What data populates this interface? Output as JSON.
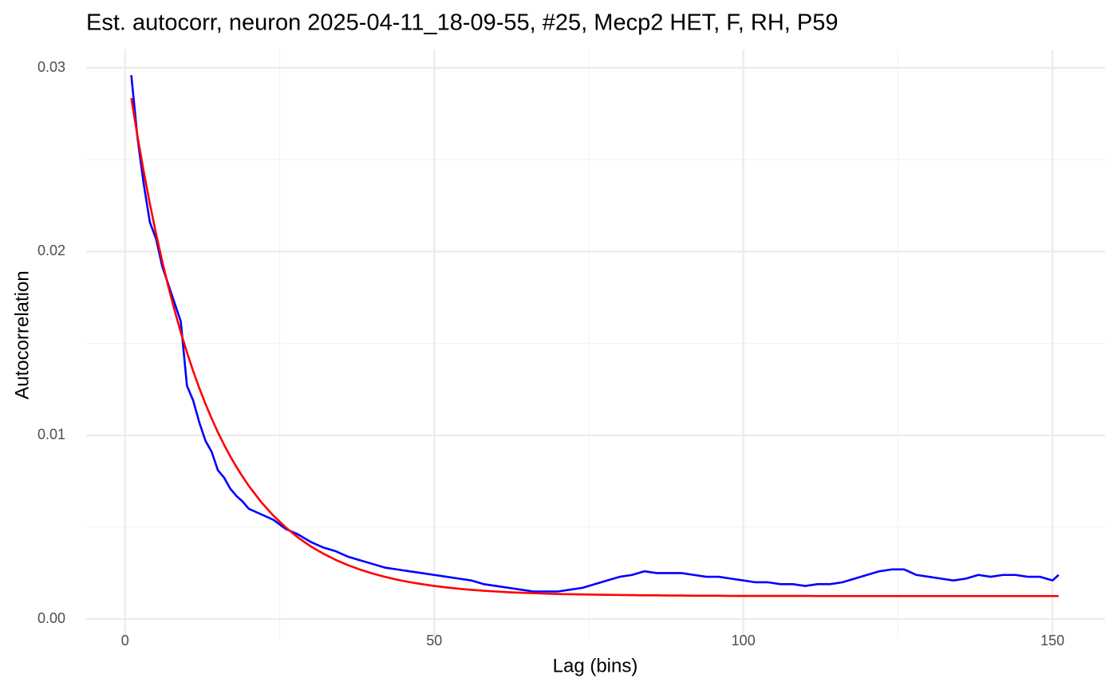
{
  "chart_data": {
    "type": "line",
    "title": "Est. autocorr, neuron 2025-04-11_18-09-55, #25, Mecp2 HET, F, RH, P59",
    "x_label": "Lag (bins)",
    "y_label": "Autocorrelation",
    "x": [
      1,
      2,
      3,
      4,
      5,
      6,
      7,
      8,
      9,
      10,
      11,
      12,
      13,
      14,
      15,
      16,
      17,
      18,
      19,
      20,
      22,
      24,
      26,
      28,
      30,
      32,
      34,
      36,
      38,
      40,
      42,
      44,
      46,
      48,
      50,
      52,
      54,
      56,
      58,
      60,
      62,
      64,
      66,
      68,
      70,
      72,
      74,
      76,
      78,
      80,
      82,
      84,
      86,
      88,
      90,
      92,
      94,
      96,
      98,
      100,
      102,
      104,
      106,
      108,
      110,
      112,
      114,
      116,
      118,
      120,
      122,
      124,
      126,
      128,
      130,
      132,
      134,
      136,
      138,
      140,
      142,
      144,
      146,
      148,
      150,
      151
    ],
    "series": [
      {
        "color": "#0000ff",
        "values": [
          0.0296,
          0.0262,
          0.0237,
          0.0216,
          0.0207,
          0.0192,
          0.0182,
          0.0172,
          0.0162,
          0.0127,
          0.0119,
          0.0107,
          0.0097,
          0.0091,
          0.0081,
          0.0077,
          0.0071,
          0.0067,
          0.0064,
          0.006,
          0.0057,
          0.0054,
          0.0049,
          0.0046,
          0.0042,
          0.0039,
          0.0037,
          0.0034,
          0.0032,
          0.003,
          0.0028,
          0.0027,
          0.0026,
          0.0025,
          0.0024,
          0.0023,
          0.0022,
          0.0021,
          0.0019,
          0.0018,
          0.0017,
          0.0016,
          0.0015,
          0.0015,
          0.0015,
          0.0016,
          0.0017,
          0.0019,
          0.0021,
          0.0023,
          0.0024,
          0.0026,
          0.0025,
          0.0025,
          0.0025,
          0.0024,
          0.0023,
          0.0023,
          0.0022,
          0.0021,
          0.002,
          0.002,
          0.0019,
          0.0019,
          0.0018,
          0.0019,
          0.0019,
          0.002,
          0.0022,
          0.0024,
          0.0026,
          0.0027,
          0.0027,
          0.0024,
          0.0023,
          0.0022,
          0.0021,
          0.0022,
          0.0024,
          0.0023,
          0.0024,
          0.0024,
          0.0023,
          0.0023,
          0.0021,
          0.0024
        ]
      },
      {
        "color": "#ff0000",
        "values": [
          0.02835,
          0.02628,
          0.02437,
          0.02261,
          0.02098,
          0.01947,
          0.01808,
          0.0168,
          0.01561,
          0.01452,
          0.0135,
          0.01257,
          0.01171,
          0.01091,
          0.01017,
          0.00949,
          0.00886,
          0.00828,
          0.00775,
          0.00725,
          0.00637,
          0.00562,
          0.00498,
          0.00443,
          0.00396,
          0.00357,
          0.00323,
          0.00294,
          0.00269,
          0.00248,
          0.0023,
          0.00214,
          0.00201,
          0.0019,
          0.0018,
          0.00172,
          0.00165,
          0.00159,
          0.00154,
          0.0015,
          0.00146,
          0.00143,
          0.00141,
          0.00138,
          0.00136,
          0.00135,
          0.00134,
          0.00133,
          0.00132,
          0.00131,
          0.0013,
          0.00129,
          0.00129,
          0.00128,
          0.00128,
          0.00127,
          0.00127,
          0.00127,
          0.00126,
          0.00126,
          0.00126,
          0.00126,
          0.00126,
          0.00126,
          0.00126,
          0.00125,
          0.00125,
          0.00125,
          0.00125,
          0.00125,
          0.00125,
          0.00125,
          0.00125,
          0.00125,
          0.00125,
          0.00125,
          0.00125,
          0.00125,
          0.00125,
          0.00125,
          0.00125,
          0.00125,
          0.00125,
          0.00125,
          0.00125,
          0.00125
        ]
      }
    ],
    "xlim": [
      -6.3,
      158.5
    ],
    "xticks": [
      0,
      50,
      100,
      150
    ],
    "ylim": [
      -0.00104,
      0.031
    ],
    "yticks": [
      {
        "value": 0,
        "label": "0.00"
      },
      0.01,
      0.02,
      0.03
    ],
    "grid": true
  }
}
